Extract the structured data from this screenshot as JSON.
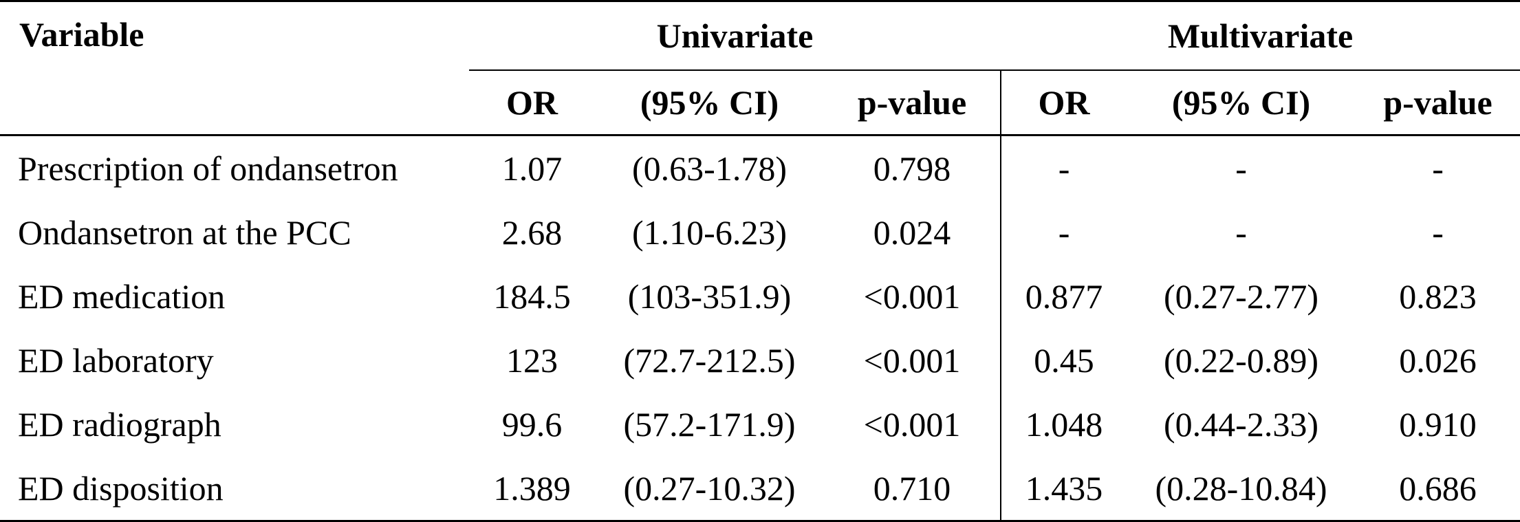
{
  "table": {
    "header": {
      "variable": "Variable",
      "groups": [
        "Univariate",
        "Multivariate"
      ],
      "subcolumns": [
        "OR",
        "(95% CI)",
        "p-value",
        "OR",
        "(95% CI)",
        "p-value"
      ]
    },
    "rows": [
      {
        "variable": "Prescription of ondansetron",
        "u_or": "1.07",
        "u_ci": "(0.63-1.78)",
        "u_p": "0.798",
        "m_or": "-",
        "m_ci": "-",
        "m_p": "-"
      },
      {
        "variable": "Ondansetron at the PCC",
        "u_or": "2.68",
        "u_ci": "(1.10-6.23)",
        "u_p": "0.024",
        "m_or": "-",
        "m_ci": "-",
        "m_p": "-"
      },
      {
        "variable": "ED medication",
        "u_or": "184.5",
        "u_ci": "(103-351.9)",
        "u_p": "<0.001",
        "m_or": "0.877",
        "m_ci": "(0.27-2.77)",
        "m_p": "0.823"
      },
      {
        "variable": "ED laboratory",
        "u_or": "123",
        "u_ci": "(72.7-212.5)",
        "u_p": "<0.001",
        "m_or": "0.45",
        "m_ci": "(0.22-0.89)",
        "m_p": "0.026"
      },
      {
        "variable": "ED radiograph",
        "u_or": "99.6",
        "u_ci": "(57.2-171.9)",
        "u_p": "<0.001",
        "m_or": "1.048",
        "m_ci": "(0.44-2.33)",
        "m_p": "0.910"
      },
      {
        "variable": "ED disposition",
        "u_or": "1.389",
        "u_ci": "(0.27-10.32)",
        "u_p": "0.710",
        "m_or": "1.435",
        "m_ci": "(0.28-10.84)",
        "m_p": "0.686"
      }
    ]
  }
}
